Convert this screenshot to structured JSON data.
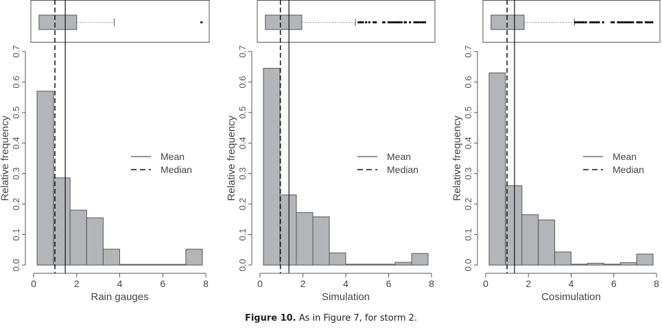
{
  "caption": {
    "label": "Figure 10.",
    "text": " As in Figure 7, for storm 2."
  },
  "colors": {
    "bar_fill": "#b4b5b8",
    "bar_stroke": "#555555",
    "line": "#111111",
    "whisker": "#999999"
  },
  "chart_data": [
    {
      "type": "bar",
      "xlabel": "Rain gauges",
      "ylabel": "Relative frequency",
      "xlim": [
        0,
        8
      ],
      "ylim": [
        0,
        0.7
      ],
      "xticks": [
        "0",
        "2",
        "4",
        "6",
        "8"
      ],
      "yticks": [
        "0.0",
        "0.1",
        "0.2",
        "0.3",
        "0.4",
        "0.5",
        "0.6",
        "0.7"
      ],
      "bin_edges": [
        0.16,
        0.928,
        1.696,
        2.464,
        3.232,
        4.0,
        4.768,
        5.536,
        6.304,
        7.072,
        7.84
      ],
      "values": [
        0.57,
        0.286,
        0.18,
        0.155,
        0.052,
        0,
        0,
        0,
        0,
        0.052
      ],
      "mean": 1.47,
      "median": 0.99,
      "legend": [
        "Mean",
        "Median"
      ],
      "legend_position": "right",
      "boxplot": {
        "q1": 0.25,
        "median": 0.99,
        "q3": 2.0,
        "whisker_low": 0.25,
        "whisker_high": 3.75,
        "outliers": [
          7.8
        ]
      }
    },
    {
      "type": "bar",
      "xlabel": "Simulation",
      "ylabel": "Relative frequency",
      "xlim": [
        0,
        8
      ],
      "ylim": [
        0,
        0.7
      ],
      "xticks": [
        "0",
        "2",
        "4",
        "6",
        "8"
      ],
      "yticks": [
        "0.0",
        "0.1",
        "0.2",
        "0.3",
        "0.4",
        "0.5",
        "0.6",
        "0.7"
      ],
      "bin_edges": [
        0.16,
        0.928,
        1.696,
        2.464,
        3.232,
        4.0,
        4.768,
        5.536,
        6.304,
        7.072,
        7.84
      ],
      "values": [
        0.645,
        0.23,
        0.172,
        0.158,
        0.04,
        0.003,
        0.003,
        0.003,
        0.009,
        0.038
      ],
      "mean": 1.35,
      "median": 0.95,
      "legend": [
        "Mean",
        "Median"
      ],
      "legend_position": "right",
      "boxplot": {
        "q1": 0.25,
        "median": 0.95,
        "q3": 1.95,
        "whisker_low": 0.25,
        "whisker_high": 4.45,
        "outliers": [
          4.6,
          4.7,
          4.8,
          4.95,
          5.1,
          5.3,
          5.4,
          5.75,
          5.8,
          6.0,
          6.1,
          6.2,
          6.3,
          6.4,
          6.5,
          6.6,
          6.75,
          6.8,
          7.0,
          7.2,
          7.3,
          7.4,
          7.5,
          7.6,
          7.7
        ]
      }
    },
    {
      "type": "bar",
      "xlabel": "Cosimulation",
      "ylabel": "Relative frequency",
      "xlim": [
        0,
        8
      ],
      "ylim": [
        0,
        0.7
      ],
      "xticks": [
        "0",
        "2",
        "4",
        "6",
        "8"
      ],
      "yticks": [
        "0.0",
        "0.1",
        "0.2",
        "0.3",
        "0.4",
        "0.5",
        "0.6",
        "0.7"
      ],
      "bin_edges": [
        0.16,
        0.928,
        1.696,
        2.464,
        3.232,
        4.0,
        4.768,
        5.536,
        6.304,
        7.072,
        7.84
      ],
      "values": [
        0.63,
        0.26,
        0.165,
        0.148,
        0.043,
        0.003,
        0.006,
        0.003,
        0.008,
        0.036
      ],
      "mean": 1.35,
      "median": 1.0,
      "legend": [
        "Mean",
        "Median"
      ],
      "legend_position": "right",
      "boxplot": {
        "q1": 0.25,
        "median": 1.0,
        "q3": 1.8,
        "whisker_low": 0.25,
        "whisker_high": 4.15,
        "outliers": [
          4.2,
          4.3,
          4.4,
          4.5,
          4.6,
          4.7,
          4.9,
          5.0,
          5.1,
          5.2,
          5.3,
          5.5,
          5.9,
          6.0,
          6.2,
          6.3,
          6.4,
          6.5,
          6.6,
          6.7,
          6.8,
          6.9,
          7.1,
          7.2,
          7.3,
          7.5,
          7.6,
          7.7,
          7.8
        ]
      }
    }
  ]
}
